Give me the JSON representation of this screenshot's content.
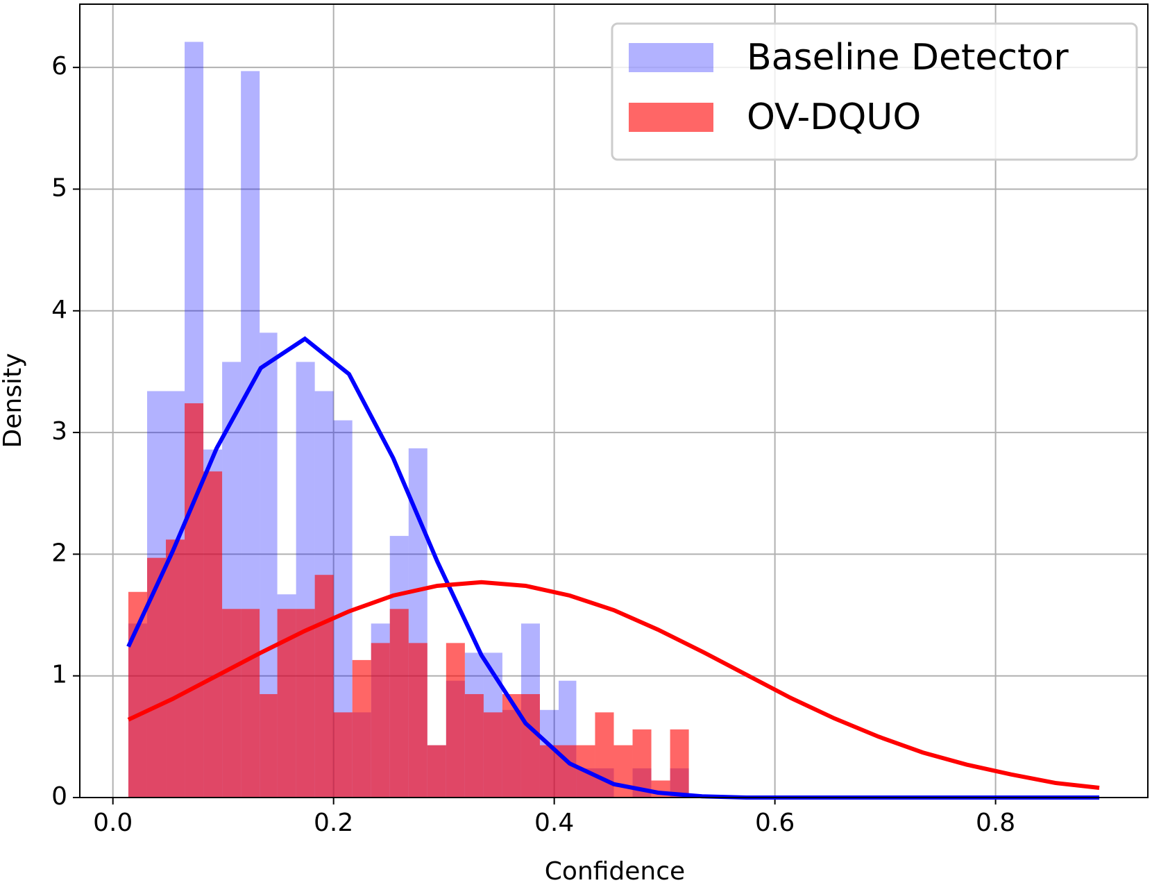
{
  "chart_data": {
    "type": "histogram",
    "xlabel": "Confidence",
    "ylabel": "Density",
    "grid": true,
    "legend_loc": "upper right",
    "xlim": [
      -0.03,
      0.938
    ],
    "ylim": [
      0,
      6.52
    ],
    "xticks": [
      {
        "value": 0,
        "label": "0.0"
      },
      0.2,
      0.4,
      0.6,
      0.8
    ],
    "yticks": [
      0,
      1,
      2,
      3,
      4,
      5,
      6
    ],
    "bins": [
      0.014,
      0.031,
      0.048,
      0.065,
      0.082,
      0.099,
      0.116,
      0.133,
      0.149,
      0.166,
      0.183,
      0.2,
      0.217,
      0.234,
      0.251,
      0.268,
      0.285,
      0.302,
      0.319,
      0.336,
      0.353,
      0.37,
      0.387,
      0.404,
      0.42,
      0.437,
      0.454,
      0.471,
      0.488,
      0.505,
      0.522
    ],
    "series": [
      {
        "name": "Baseline Detector",
        "color": "#0000ff",
        "alpha": 0.3,
        "values": [
          1.43,
          3.34,
          3.34,
          6.21,
          2.86,
          3.58,
          5.97,
          3.82,
          1.67,
          3.58,
          3.34,
          3.1,
          0.7,
          1.43,
          2.15,
          2.87,
          0.43,
          0.96,
          1.19,
          1.19,
          0.72,
          1.43,
          0.72,
          0.96,
          0.24,
          0.24,
          0,
          0.24,
          0,
          0.24
        ]
      },
      {
        "name": "OV-DQUO",
        "color": "#ff0000",
        "alpha": 0.6,
        "values": [
          1.69,
          1.97,
          2.12,
          3.24,
          2.68,
          1.55,
          1.55,
          0.85,
          1.55,
          1.55,
          1.83,
          0.7,
          1.13,
          1.27,
          1.55,
          1.27,
          0.43,
          1.27,
          0.85,
          0.7,
          0.85,
          0.85,
          0.43,
          0.43,
          0.43,
          0.7,
          0.43,
          0.56,
          0.14,
          0.56
        ]
      }
    ],
    "curves": [
      {
        "color": "#0000ff",
        "x": [
          0.014,
          0.054,
          0.094,
          0.134,
          0.174,
          0.214,
          0.254,
          0.294,
          0.334,
          0.374,
          0.414,
          0.454,
          0.494,
          0.534,
          0.574,
          0.614,
          0.654,
          0.694,
          0.734,
          0.774,
          0.814,
          0.854,
          0.894
        ],
        "values": [
          1.24,
          2.02,
          2.87,
          3.53,
          3.77,
          3.48,
          2.79,
          1.94,
          1.17,
          0.61,
          0.28,
          0.11,
          0.04,
          0.01,
          0,
          0,
          0,
          0,
          0,
          0,
          0,
          0,
          0
        ]
      },
      {
        "color": "#ff0000",
        "x": [
          0.014,
          0.054,
          0.094,
          0.134,
          0.174,
          0.214,
          0.254,
          0.294,
          0.334,
          0.374,
          0.414,
          0.454,
          0.494,
          0.534,
          0.574,
          0.614,
          0.654,
          0.694,
          0.734,
          0.774,
          0.814,
          0.854,
          0.894
        ],
        "values": [
          0.64,
          0.81,
          1.0,
          1.19,
          1.37,
          1.53,
          1.66,
          1.74,
          1.77,
          1.74,
          1.66,
          1.54,
          1.38,
          1.2,
          1.01,
          0.82,
          0.65,
          0.5,
          0.37,
          0.27,
          0.19,
          0.12,
          0.08
        ]
      }
    ]
  }
}
